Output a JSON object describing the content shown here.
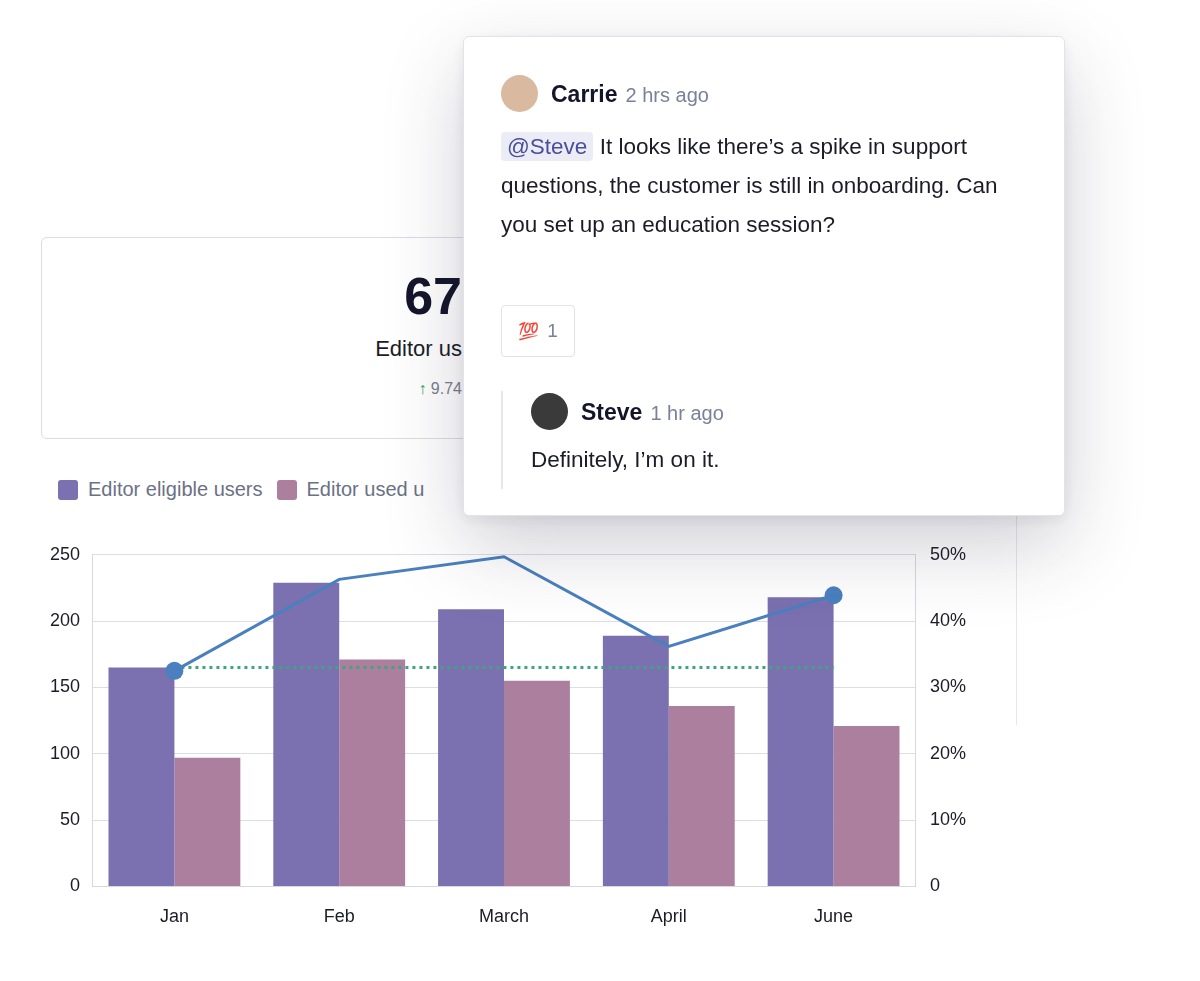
{
  "chart_data": {
    "type": "bar",
    "categories": [
      "Jan",
      "Feb",
      "March",
      "April",
      "June"
    ],
    "series": [
      {
        "name": "Editor eligible users",
        "color": "#7b70b0",
        "values": [
          165,
          229,
          209,
          189,
          218
        ]
      },
      {
        "name": "Editor used u",
        "color": "#ad7f9e",
        "values": [
          97,
          171,
          155,
          136,
          121
        ]
      },
      {
        "type": "line",
        "axis": "y2",
        "color": "#4a80be",
        "marker": "circle",
        "line_style": "solid",
        "values": [
          32.5,
          46.3,
          49.7,
          36.2,
          43.9
        ]
      },
      {
        "type": "line",
        "axis": "y2",
        "color": "#3fa57f",
        "marker": "none",
        "line_style": "dotted",
        "values": [
          33,
          33,
          33,
          33,
          33
        ]
      }
    ],
    "ylim": [
      0,
      250
    ],
    "yticks": [
      0,
      50,
      100,
      150,
      200,
      250
    ],
    "y2lim": [
      0,
      50
    ],
    "y2ticks": [
      0,
      {
        "value": 10,
        "label": "10%"
      },
      {
        "value": 20,
        "label": "20%"
      },
      {
        "value": 30,
        "label": "30%"
      },
      {
        "value": 40,
        "label": "40%"
      },
      {
        "value": 50,
        "label": "50%"
      }
    ],
    "grid": true,
    "legend": "top-left"
  },
  "kpi_card": {
    "value": "67",
    "label": "Editor us",
    "change": "↑ 9.74"
  },
  "comment_thread": {
    "author": "Carrie",
    "time": "2 hrs ago",
    "mention": "@Steve",
    "text": "It looks like there’s a spike in support questions, the customer is still in onboarding. Can you set up an education session?",
    "reaction": {
      "emoji": "💯",
      "count": 1
    },
    "reply": {
      "author": "Steve",
      "time": "1 hr ago",
      "text": "Definitely, I’m on it."
    }
  }
}
